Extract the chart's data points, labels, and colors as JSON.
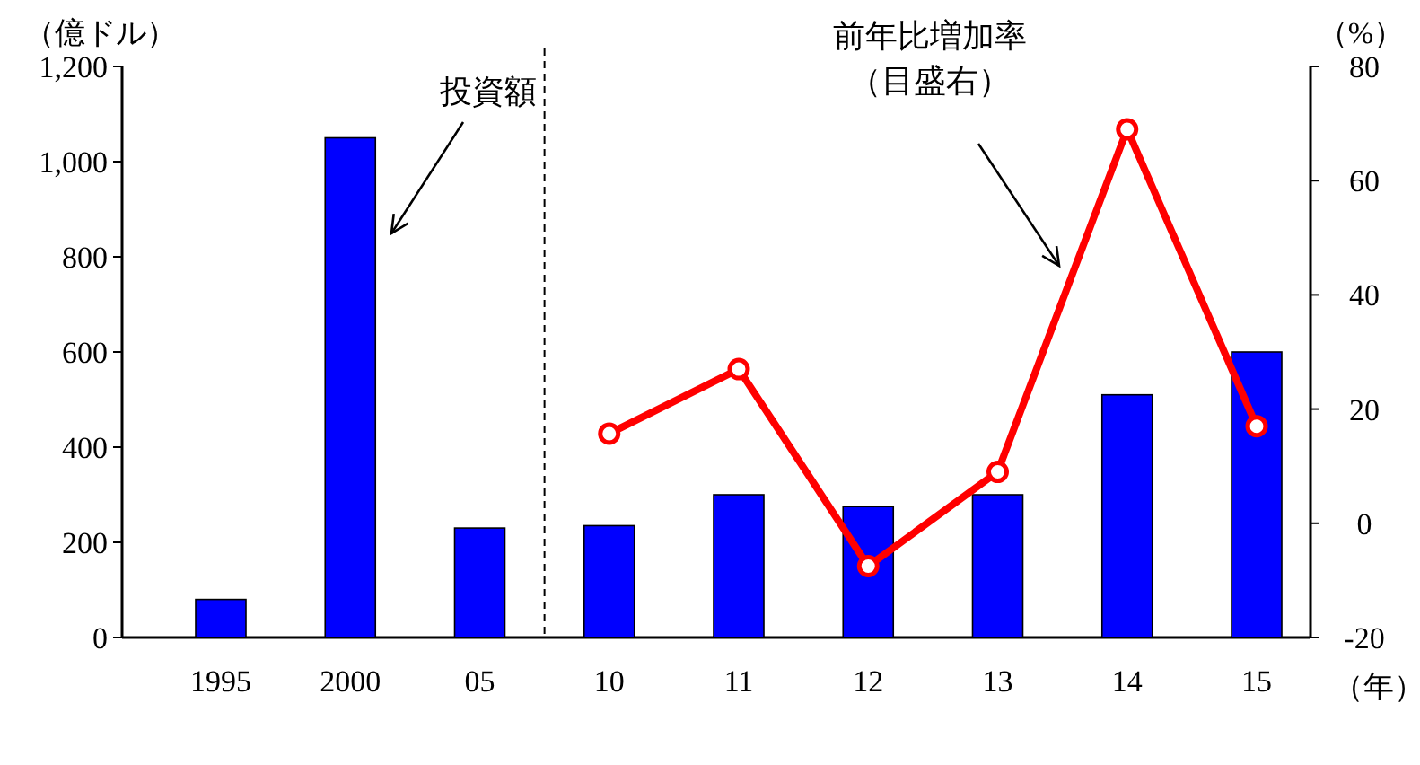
{
  "chart_data": {
    "type": "bar",
    "ylabel": "（億ドル）",
    "y2label": "（%）",
    "xlabel": "（年）",
    "categories": [
      "1995",
      "2000",
      "05",
      "10",
      "11",
      "12",
      "13",
      "14",
      "15"
    ],
    "series": [
      {
        "color": "#0000ff",
        "values": [
          80,
          1050,
          230,
          235,
          300,
          275,
          300,
          510,
          600
        ]
      },
      {
        "type": "line",
        "axis": "y2",
        "color": "#ff0000",
        "marker": "circle",
        "values": [
          null,
          null,
          null,
          15.7,
          27,
          -7.5,
          9,
          69,
          17
        ]
      }
    ],
    "ylim": [
      0,
      1200
    ],
    "yticks": [
      0,
      200,
      400,
      600,
      800,
      {
        "value": 1000,
        "label": "1,000"
      },
      {
        "value": 1200,
        "label": "1,200"
      }
    ],
    "y2lim": [
      -20,
      80
    ],
    "y2ticks": [
      -20,
      0,
      20,
      40,
      60,
      80
    ],
    "annotations": [
      "投資額",
      "前年比増加率",
      "（目盛右）"
    ],
    "grid": false
  }
}
